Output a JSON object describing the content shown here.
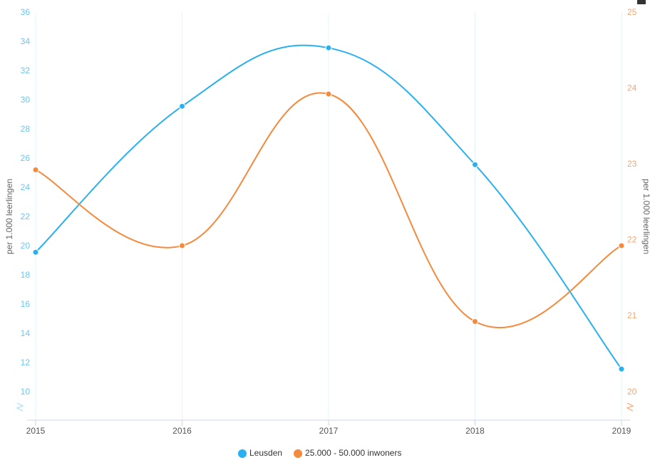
{
  "chart_data": {
    "type": "line",
    "categories": [
      "2015",
      "2016",
      "2017",
      "2018",
      "2019"
    ],
    "series": [
      {
        "name": "Leusden",
        "color": "#29b0f0",
        "values": [
          19.6,
          29.6,
          33.6,
          25.6,
          11.6
        ]
      },
      {
        "name": "25.000 - 50.000 inwoners",
        "color": "#f58a3c",
        "axis": "y2",
        "values": [
          22.93,
          21.93,
          23.93,
          20.93,
          21.93
        ]
      }
    ],
    "ylabel": "per 1.000 leerlingen",
    "y2label": "per 1.000 leerlingen",
    "ylim": [
      8.1,
      36
    ],
    "yticks": [
      10,
      12,
      14,
      16,
      18,
      20,
      22,
      24,
      26,
      28,
      30,
      32,
      34,
      36
    ],
    "y2lim": [
      19.63,
      25
    ],
    "y2ticks": [
      20,
      21,
      22,
      23,
      24,
      25
    ],
    "grid": true,
    "legend": "bottom"
  }
}
